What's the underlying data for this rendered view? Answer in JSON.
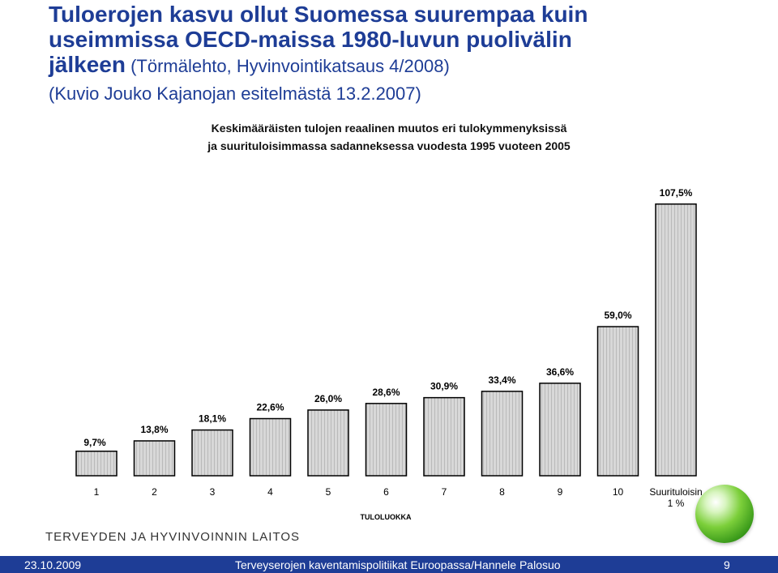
{
  "title": {
    "line1": "Tuloerojen kasvu ollut Suomessa suurempaa kuin",
    "line2": "useimmissa OECD-maissa 1980-luvun puolivälin",
    "line3_bold": "jälkeen",
    "line3_rest": " (Törmälehto, Hyvinvointikatsaus 4/2008)",
    "line4": "(Kuvio Jouko Kajanojan esitelmästä 13.2.2007)"
  },
  "chart_data": {
    "type": "bar",
    "title_line1": "Keskimääräisten tulojen reaalinen muutos eri tulokymmenyksissä",
    "title_line2": "ja suurituloisimmassa sadanneksessa vuodesta 1995 vuoteen 2005",
    "categories": [
      "1",
      "2",
      "3",
      "4",
      "5",
      "6",
      "7",
      "8",
      "9",
      "10",
      "Suurituloisin 1 %"
    ],
    "values": [
      9.7,
      13.8,
      18.1,
      22.6,
      26.0,
      28.6,
      30.9,
      33.4,
      36.6,
      59.0,
      107.5
    ],
    "value_labels": [
      "9,7%",
      "13,8%",
      "18,1%",
      "22,6%",
      "26,0%",
      "28,6%",
      "30,9%",
      "33,4%",
      "36,6%",
      "59,0%",
      "107,5%"
    ],
    "xlabel": "TULOLUOKKA",
    "ylabel": "",
    "ylim": [
      0,
      110
    ],
    "grid": false,
    "bar_color": "#d0d0d0"
  },
  "org": "TERVEYDEN JA HYVINVOINNIN LAITOS",
  "footer": {
    "date": "23.10.2009",
    "text": "Terveyserojen kaventamispolitiikat Euroopassa/Hannele Palosuo",
    "page": "9",
    "bg": "#1e3d96"
  }
}
